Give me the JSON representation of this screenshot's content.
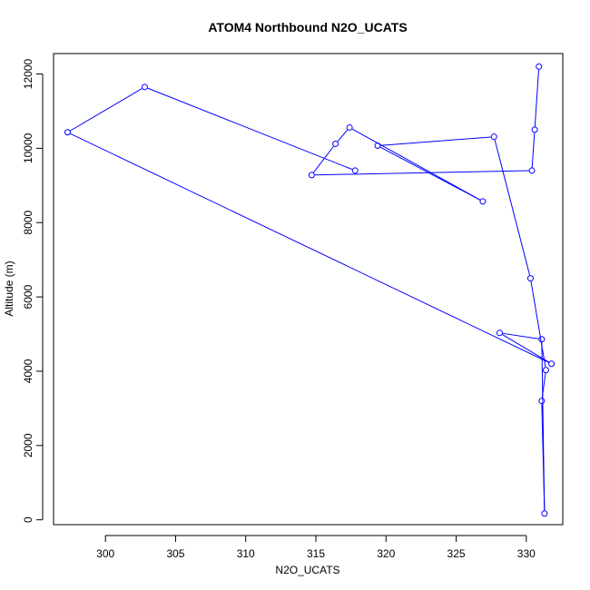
{
  "chart_data": {
    "type": "line",
    "title": "ATOM4 Northbound N2O_UCATS",
    "xlabel": "N2O_UCATS",
    "ylabel": "Altitude (m)",
    "xlim": [
      296.3,
      332.6
    ],
    "ylim": [
      -130,
      12550
    ],
    "x_ticks": [
      300,
      305,
      310,
      315,
      320,
      325,
      330
    ],
    "y_ticks": [
      0,
      2000,
      4000,
      6000,
      8000,
      10000,
      12000
    ],
    "line_color": "#0000ff",
    "marker": "open-circle",
    "series": [
      {
        "x": [
          317.8,
          302.8,
          297.3,
          331.8,
          328.1,
          331.1,
          331.3,
          331.1,
          331.4,
          330.3,
          327.7,
          319.4,
          326.9,
          317.4,
          316.4,
          314.7,
          330.4,
          330.6,
          330.9
        ],
        "y": [
          9400,
          11650,
          10430,
          4200,
          5030,
          4860,
          170,
          3200,
          4030,
          6500,
          10310,
          10070,
          8570,
          10560,
          10120,
          9280,
          9400,
          10500,
          12200
        ]
      }
    ]
  }
}
